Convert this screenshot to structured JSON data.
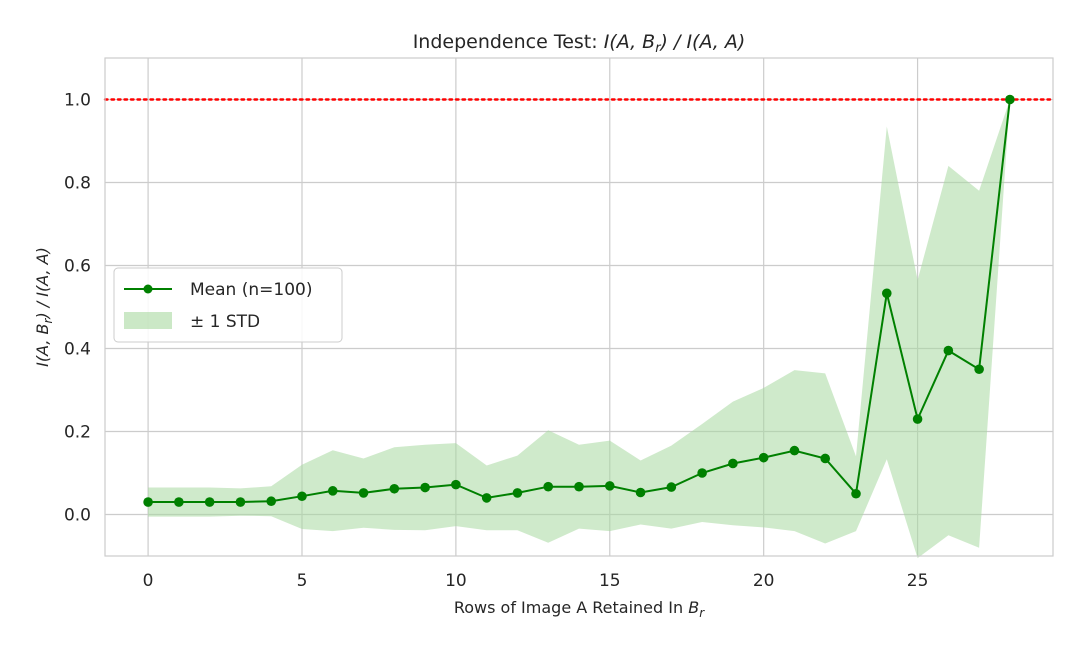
{
  "chart_data": {
    "type": "line",
    "title": "Independence Test: I(A, B_r) / I(A, A)",
    "title_parts": {
      "prefix": "Independence Test: ",
      "num": "I(A, B",
      "num_sub": "r",
      "tail": ") / I(A, A)"
    },
    "xlabel": "Rows of Image A Retained In B_r",
    "xlabel_parts": {
      "prefix": "Rows of Image A Retained In ",
      "var": "B",
      "sub": "r"
    },
    "ylabel": "I(A, B_r) / I(A, A)",
    "ylabel_parts": {
      "num": "I(A, B",
      "num_sub": "r",
      "tail": ") / I(A, A)"
    },
    "xlim": [
      -1.4,
      29.4
    ],
    "ylim": [
      -0.1,
      1.1
    ],
    "xticks": [
      0,
      5,
      10,
      15,
      20,
      25
    ],
    "yticks": [
      0.0,
      0.2,
      0.4,
      0.6,
      0.8,
      1.0
    ],
    "ytick_labels": [
      "0.0",
      "0.2",
      "0.4",
      "0.6",
      "0.8",
      "1.0"
    ],
    "grid": true,
    "legend_position": "center-left",
    "x": [
      0,
      1,
      2,
      3,
      4,
      5,
      6,
      7,
      8,
      9,
      10,
      11,
      12,
      13,
      14,
      15,
      16,
      17,
      18,
      19,
      20,
      21,
      22,
      23,
      24,
      25,
      26,
      27,
      28
    ],
    "series": [
      {
        "name": "Mean (n=100)",
        "color": "#008000",
        "values": [
          0.03,
          0.03,
          0.03,
          0.03,
          0.032,
          0.044,
          0.057,
          0.052,
          0.062,
          0.065,
          0.072,
          0.04,
          0.052,
          0.067,
          0.067,
          0.069,
          0.053,
          0.066,
          0.1,
          0.123,
          0.137,
          0.154,
          0.135,
          0.05,
          0.533,
          0.23,
          0.395,
          0.35,
          1.0
        ]
      }
    ],
    "band": {
      "name": "± 1 STD",
      "color": "#a8d8a0",
      "upper": [
        0.065,
        0.065,
        0.065,
        0.063,
        0.068,
        0.12,
        0.155,
        0.135,
        0.162,
        0.168,
        0.172,
        0.118,
        0.142,
        0.203,
        0.168,
        0.178,
        0.13,
        0.166,
        0.218,
        0.272,
        0.305,
        0.348,
        0.34,
        0.14,
        0.935,
        0.565,
        0.84,
        0.78,
        1.0
      ],
      "lower": [
        -0.005,
        -0.005,
        -0.005,
        -0.003,
        -0.004,
        -0.035,
        -0.04,
        -0.032,
        -0.037,
        -0.038,
        -0.028,
        -0.038,
        -0.038,
        -0.068,
        -0.034,
        -0.04,
        -0.024,
        -0.034,
        -0.018,
        -0.026,
        -0.031,
        -0.04,
        -0.07,
        -0.04,
        0.133,
        -0.105,
        -0.05,
        -0.08,
        1.0
      ]
    },
    "reference_line": {
      "y": 1.0,
      "color": "#ff0000",
      "style": "dotted"
    }
  }
}
